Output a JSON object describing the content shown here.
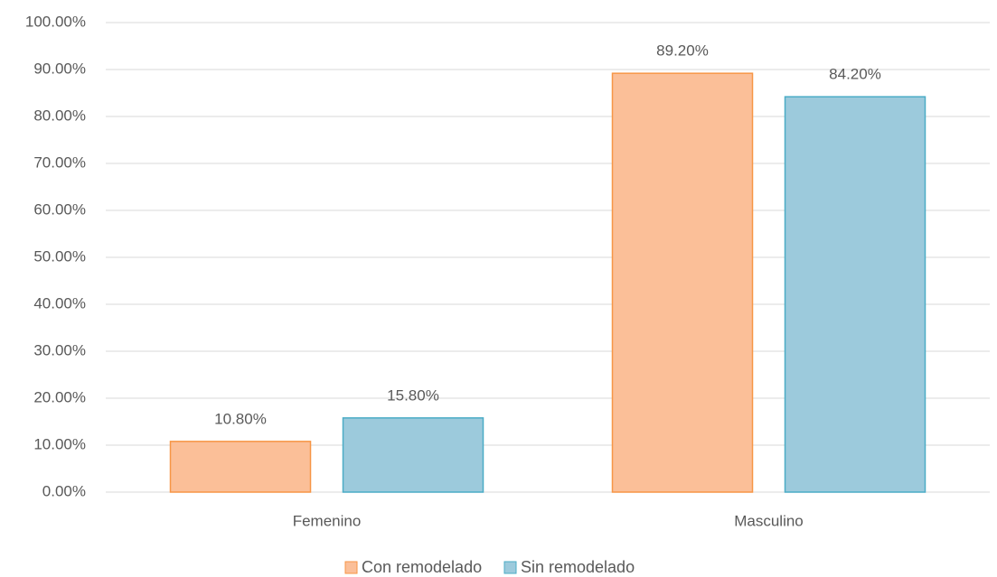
{
  "chart_data": {
    "type": "bar",
    "categories": [
      "Femenino",
      "Masculino"
    ],
    "series": [
      {
        "name": "Con remodelado",
        "color": "#fbbf98",
        "edgecolor": "#f79646",
        "values": [
          10.8,
          89.2
        ],
        "value_labels": [
          "10.80%",
          "89.20%"
        ]
      },
      {
        "name": "Sin remodelado",
        "color": "#9ccadc",
        "edgecolor": "#4bacc6",
        "values": [
          15.8,
          84.2
        ],
        "value_labels": [
          "15.80%",
          "84.20%"
        ]
      }
    ],
    "ylim": [
      0,
      100
    ],
    "yticks": [
      {
        "value": 0,
        "label": "0.00%"
      },
      {
        "value": 10,
        "label": "10.00%"
      },
      {
        "value": 20,
        "label": "20.00%"
      },
      {
        "value": 30,
        "label": "30.00%"
      },
      {
        "value": 40,
        "label": "40.00%"
      },
      {
        "value": 50,
        "label": "50.00%"
      },
      {
        "value": 60,
        "label": "60.00%"
      },
      {
        "value": 70,
        "label": "70.00%"
      },
      {
        "value": 80,
        "label": "80.00%"
      },
      {
        "value": 90,
        "label": "90.00%"
      },
      {
        "value": 100,
        "label": "100.00%"
      }
    ],
    "grid": true,
    "legend": "bottom"
  }
}
